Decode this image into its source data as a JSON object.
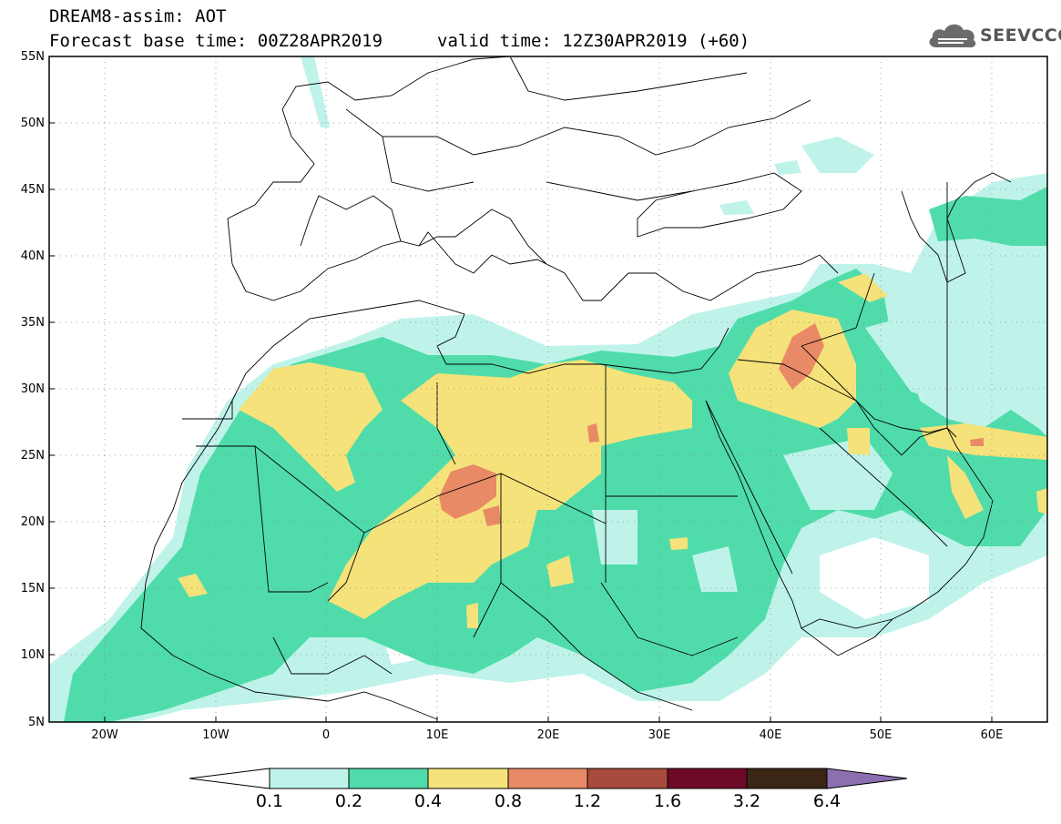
{
  "header": {
    "line1": "DREAM8-assim: AOT",
    "base_label": "Forecast base time: 00Z28APR2019",
    "valid_label": "valid time: 12Z30APR2019 (+60)"
  },
  "logo": {
    "text": "SEEVCCC",
    "icon": "cloud-icon"
  },
  "map": {
    "projection": "lat-lon",
    "lon_range": [
      -25,
      65
    ],
    "lat_range": [
      5,
      55
    ],
    "lat_labels": [
      "55N",
      "50N",
      "45N",
      "40N",
      "35N",
      "30N",
      "25N",
      "20N",
      "15N",
      "10N",
      "5N"
    ],
    "lon_labels": [
      "20W",
      "10W",
      "0",
      "10E",
      "20E",
      "30E",
      "40E",
      "50E",
      "60E"
    ],
    "grid": "dotted"
  },
  "colorbar": {
    "labels": [
      "0.1",
      "0.2",
      "0.4",
      "0.8",
      "1.2",
      "1.6",
      "3.2",
      "6.4"
    ],
    "colors": [
      "#ffffff",
      "#bff3ea",
      "#4fdcaa",
      "#f5e27a",
      "#e98a67",
      "#a84a3c",
      "#6e0a28",
      "#3b2616",
      "#8c6fb0"
    ]
  }
}
